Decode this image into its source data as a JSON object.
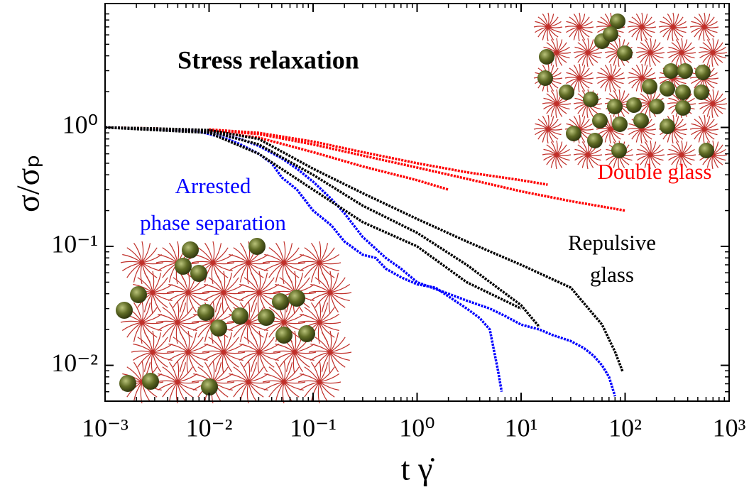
{
  "chart_data": {
    "type": "line",
    "log_x": true,
    "log_y": true,
    "xlabel": "t γ̇",
    "ylabel": "σ/σₚ",
    "xlim": [
      0.001,
      1000
    ],
    "ylim": [
      0.005,
      11
    ],
    "xticks": [
      {
        "value": 0.001,
        "label": "10⁻³"
      },
      {
        "value": 0.01,
        "label": "10⁻²"
      },
      {
        "value": 0.1,
        "label": "10⁻¹"
      },
      {
        "value": 1,
        "label": "10⁰"
      },
      {
        "value": 10,
        "label": "10¹"
      },
      {
        "value": 100,
        "label": "10²"
      },
      {
        "value": 1000,
        "label": "10³"
      }
    ],
    "yticks": [
      {
        "value": 0.01,
        "label": "10⁻²"
      },
      {
        "value": 0.1,
        "label": "10⁻¹"
      },
      {
        "value": 1,
        "label": "10⁰"
      }
    ],
    "annotations": [
      {
        "text": [
          "Stress relaxation"
        ],
        "color": "#000000"
      },
      {
        "text": [
          "Arrested",
          "phase separation"
        ],
        "color": "#0000ff"
      },
      {
        "text": [
          "Double glass"
        ],
        "color": "#ff0000"
      },
      {
        "text": [
          "Repulsive",
          "glass"
        ],
        "color": "#000000"
      }
    ],
    "series": [
      {
        "color": "#ff0000",
        "x": [
          0.001,
          0.003,
          0.01,
          0.03,
          0.1,
          0.3,
          1,
          2
        ],
        "values": [
          1,
          0.98,
          0.93,
          0.82,
          0.62,
          0.47,
          0.36,
          0.3
        ]
      },
      {
        "color": "#ff0000",
        "x": [
          0.01,
          0.03,
          0.1,
          0.3,
          1,
          3,
          10,
          30,
          100
        ],
        "values": [
          0.95,
          0.88,
          0.72,
          0.58,
          0.46,
          0.37,
          0.29,
          0.24,
          0.2
        ]
      },
      {
        "color": "#ff0000",
        "x": [
          0.01,
          0.03,
          0.1,
          0.3,
          1,
          3,
          10,
          18
        ],
        "values": [
          0.96,
          0.9,
          0.76,
          0.62,
          0.5,
          0.42,
          0.36,
          0.33
        ]
      },
      {
        "color": "#0000ff",
        "x": [
          0.001,
          0.002,
          0.003,
          0.005,
          0.007,
          0.01,
          0.015,
          0.02,
          0.03,
          0.04,
          0.05,
          0.07,
          0.1,
          0.15,
          0.2,
          0.3,
          0.4,
          0.5,
          0.7,
          1,
          1.5,
          2,
          3,
          4,
          5,
          6,
          6.5
        ],
        "values": [
          1,
          0.98,
          0.97,
          0.94,
          0.95,
          0.88,
          0.8,
          0.72,
          0.6,
          0.5,
          0.38,
          0.3,
          0.2,
          0.15,
          0.11,
          0.085,
          0.08,
          0.065,
          0.055,
          0.048,
          0.045,
          0.038,
          0.03,
          0.025,
          0.02,
          0.009,
          0.006
        ]
      },
      {
        "color": "#0000ff",
        "x": [
          0.001,
          0.003,
          0.01,
          0.02,
          0.03,
          0.05,
          0.07,
          0.1,
          0.15,
          0.2,
          0.3,
          0.5,
          0.7,
          1,
          2,
          3,
          5,
          7,
          10,
          15,
          20,
          30,
          40,
          50,
          60,
          70,
          80
        ],
        "values": [
          1,
          0.97,
          0.92,
          0.8,
          0.7,
          0.55,
          0.45,
          0.35,
          0.25,
          0.19,
          0.12,
          0.08,
          0.065,
          0.05,
          0.04,
          0.035,
          0.03,
          0.026,
          0.022,
          0.02,
          0.018,
          0.016,
          0.014,
          0.012,
          0.01,
          0.008,
          0.0055
        ]
      },
      {
        "color": "#000000",
        "x": [
          0.001,
          0.003,
          0.01,
          0.03,
          0.1,
          0.3,
          1,
          3,
          10,
          30,
          60,
          80,
          95
        ],
        "values": [
          1,
          0.98,
          0.95,
          0.8,
          0.45,
          0.28,
          0.17,
          0.11,
          0.07,
          0.045,
          0.022,
          0.013,
          0.0088
        ]
      },
      {
        "color": "#000000",
        "x": [
          0.001,
          0.01,
          0.03,
          0.1,
          0.3,
          1,
          3,
          10,
          15
        ],
        "values": [
          1,
          0.93,
          0.72,
          0.4,
          0.22,
          0.13,
          0.07,
          0.032,
          0.021
        ]
      },
      {
        "color": "#000000",
        "x": [
          0.001,
          0.01,
          0.03,
          0.1,
          0.3,
          1,
          3,
          10
        ],
        "values": [
          1,
          0.9,
          0.6,
          0.3,
          0.16,
          0.1,
          0.05,
          0.03
        ]
      }
    ]
  }
}
